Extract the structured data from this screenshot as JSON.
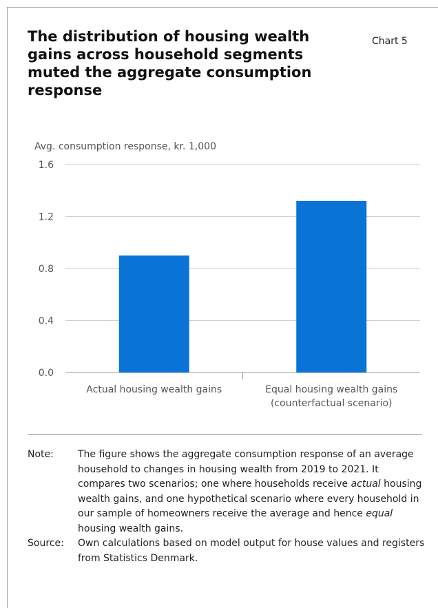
{
  "title": "The distribution of housing wealth gains across household segments muted the aggregate consumption response",
  "chart_label": "Chart 5",
  "chart_data": {
    "type": "bar",
    "categories": [
      [
        "Actual housing wealth gains"
      ],
      [
        "Equal housing wealth gains",
        "(counterfactual scenario)"
      ]
    ],
    "values": [
      0.9,
      1.32
    ],
    "ylabel": "Avg. consumption response, kr. 1,000",
    "ylim": [
      0,
      1.6
    ],
    "yticks": [
      "0.0",
      "0.4",
      "0.8",
      "1.2",
      "1.6"
    ],
    "grid": true,
    "bar_color": "#0a74d6"
  },
  "note": {
    "label": "Note:",
    "text_parts": [
      {
        "t": "The figure shows the aggregate consumption response of an average household to changes in housing wealth from 2019 to 2021. It compares two scenarios; one where households receive ",
        "i": false
      },
      {
        "t": "actual",
        "i": true
      },
      {
        "t": " housing wealth gains, and one hypothetical scenario where every household in our sample of homeowners receive the average and hence ",
        "i": false
      },
      {
        "t": "equal",
        "i": true
      },
      {
        "t": " housing wealth gains.",
        "i": false
      }
    ]
  },
  "source": {
    "label": "Source:",
    "text": "Own calculations based on model output for house values and registers from Statistics Denmark."
  }
}
